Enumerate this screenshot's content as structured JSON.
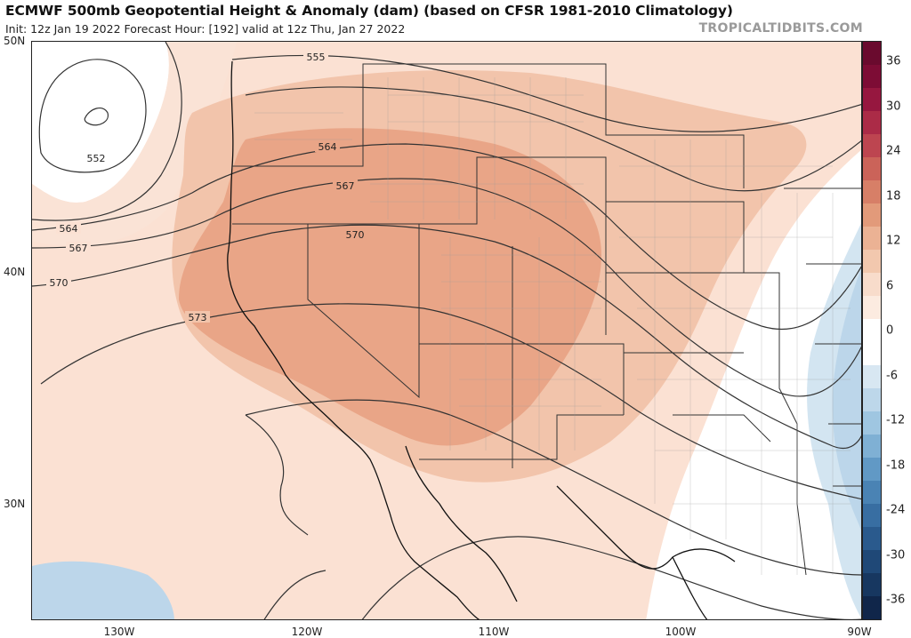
{
  "header": {
    "title": "ECMWF 500mb Geopotential Height & Anomaly (dam) (based on CFSR 1981-2010 Climatology)",
    "subtitle": "Init: 12z Jan 19 2022   Forecast Hour: [192]   valid at 12z Thu, Jan 27 2022",
    "brand": "TROPICALTIDBITS.COM"
  },
  "axes": {
    "lat_labels": [
      "50N",
      "40N",
      "30N"
    ],
    "lon_labels": [
      "130W",
      "120W",
      "110W",
      "100W",
      "90W"
    ]
  },
  "contours": {
    "labels": [
      "555",
      "552",
      "564",
      "564",
      "567",
      "567",
      "570",
      "570",
      "573"
    ]
  },
  "colorbar": {
    "labels": [
      "36",
      "30",
      "24",
      "18",
      "12",
      "6",
      "0",
      "-6",
      "-12",
      "-18",
      "-24",
      "-30",
      "-36"
    ],
    "colors": [
      "#6a0a2e",
      "#7d0c35",
      "#96173f",
      "#ab2b47",
      "#bd4550",
      "#cb6359",
      "#d77f67",
      "#e29a7a",
      "#ebb294",
      "#f2c8ae",
      "#f8dccb",
      "#fcebe0",
      "#ffffff",
      "#ffffff",
      "#d8e7f2",
      "#bdd7ea",
      "#9fc6e1",
      "#7fb0d4",
      "#6199c5",
      "#4a83b4",
      "#386ea2",
      "#2a5a8d",
      "#1f4877",
      "#173760",
      "#10264a"
    ]
  }
}
